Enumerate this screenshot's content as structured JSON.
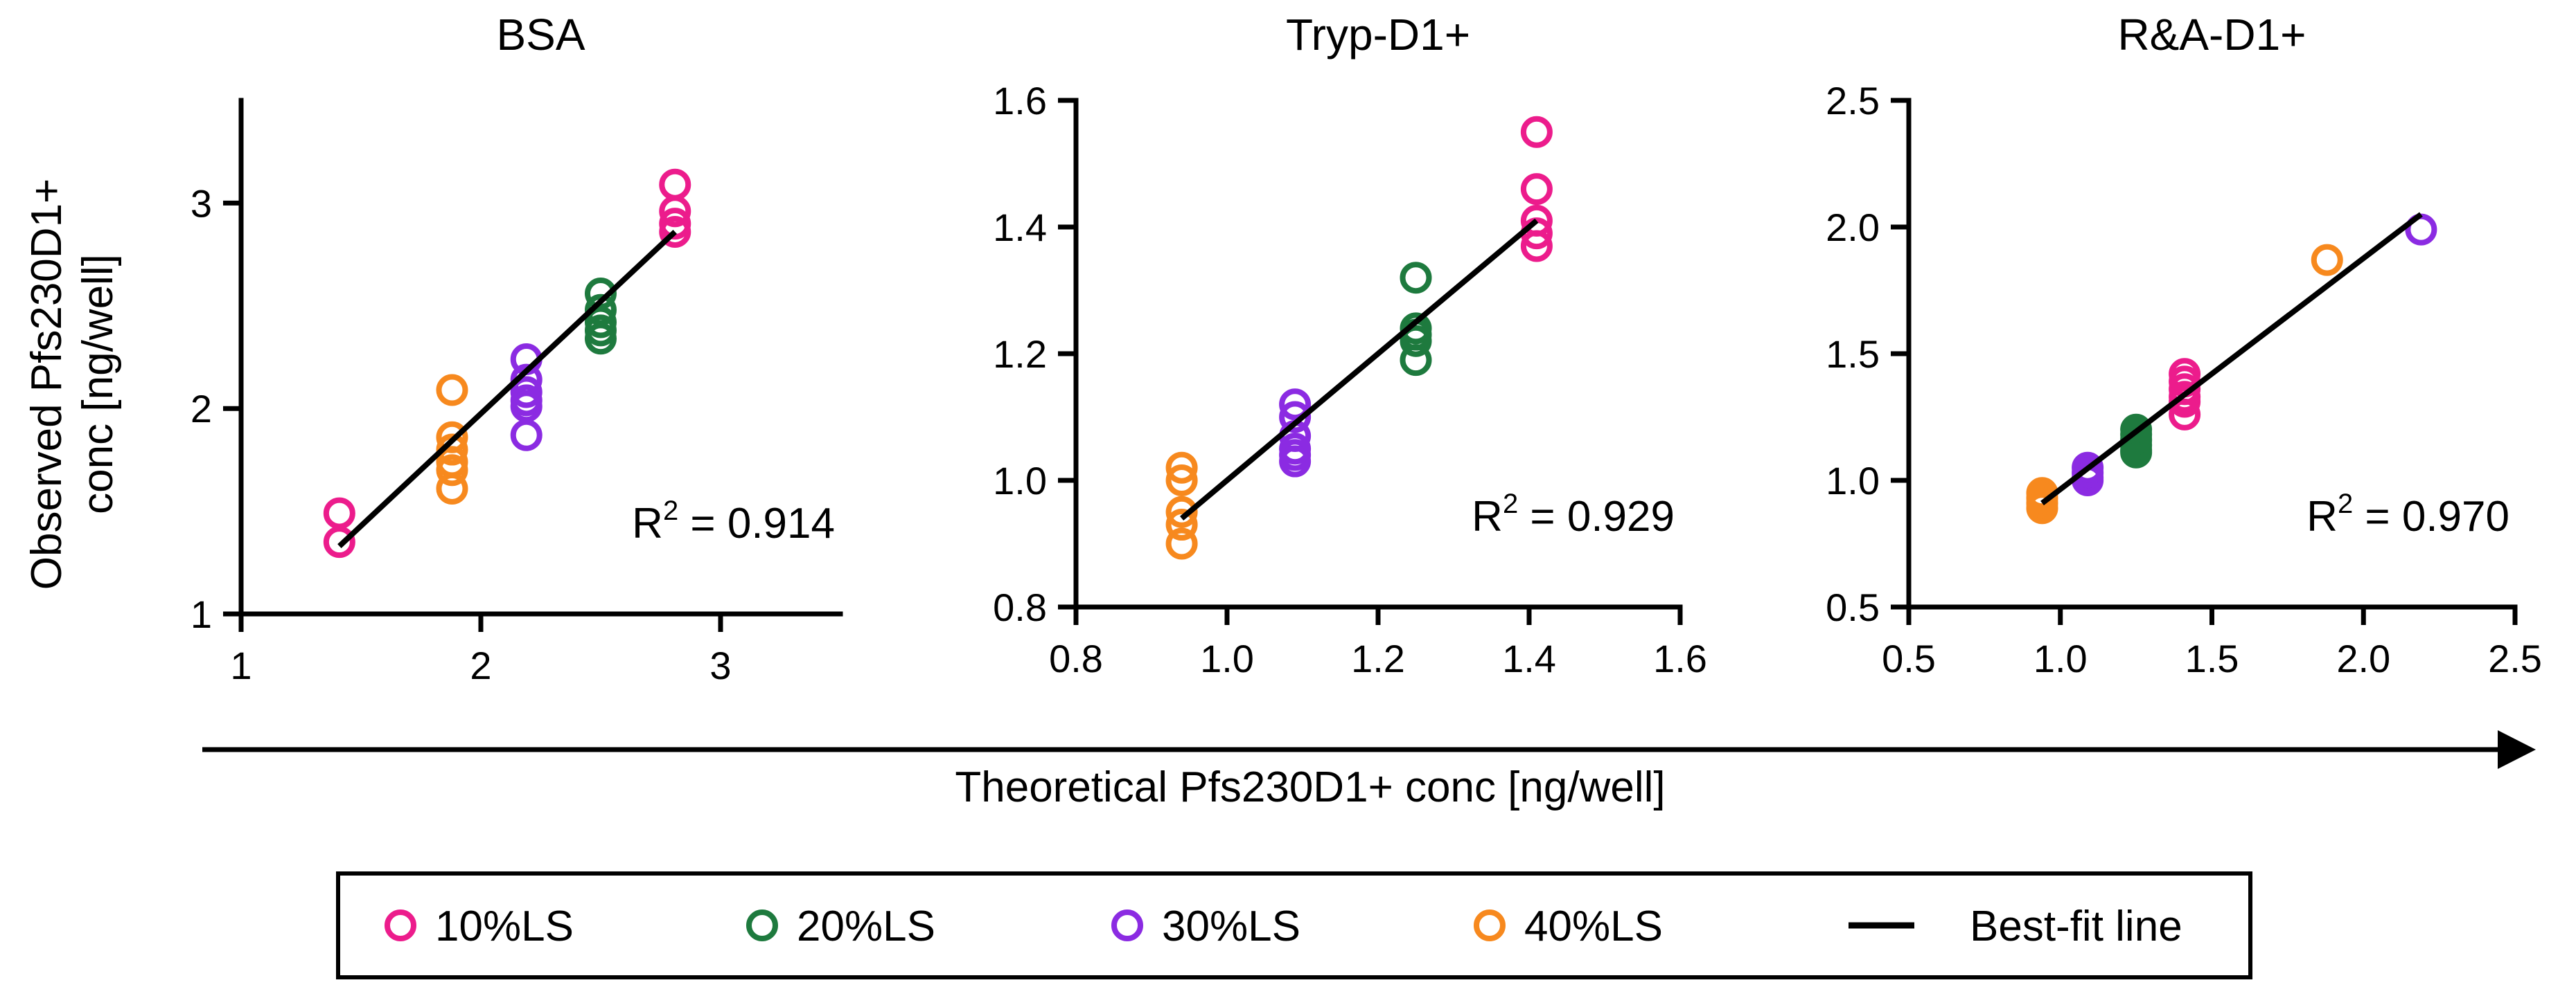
{
  "colors": {
    "10%LS": "#ec1c8c",
    "20%LS": "#1e7a3e",
    "30%LS": "#8b2be2",
    "40%LS": "#f7891e",
    "fit": "#000000"
  },
  "y_axis_title": [
    "Observed Pfs230D1+",
    "conc [ng/well]"
  ],
  "x_axis_title": "Theoretical Pfs230D1+ conc [ng/well]",
  "legend": {
    "items": [
      {
        "label": "10%LS",
        "kind": "marker",
        "color_key": "10%LS"
      },
      {
        "label": "20%LS",
        "kind": "marker",
        "color_key": "20%LS"
      },
      {
        "label": "30%LS",
        "kind": "marker",
        "color_key": "30%LS"
      },
      {
        "label": "40%LS",
        "kind": "marker",
        "color_key": "40%LS"
      },
      {
        "label": "Best-fit line",
        "kind": "line",
        "color_key": "fit"
      }
    ]
  },
  "chart_data": [
    {
      "type": "scatter",
      "title": "BSA",
      "xlim": [
        1,
        3.5
      ],
      "ylim": [
        1,
        3.5
      ],
      "xticks": [
        1,
        2,
        3
      ],
      "yticks": [
        1,
        2,
        3
      ],
      "xtick_labels": [
        "1",
        "2",
        "3"
      ],
      "ytick_labels": [
        "1",
        "2",
        "3"
      ],
      "r2_prefix": "R",
      "r2_sup": "2",
      "r2_value": " = 0.914",
      "fit": {
        "x": [
          1.41,
          2.81
        ],
        "y": [
          1.33,
          2.86
        ]
      },
      "series": [
        {
          "name": "10%LS",
          "x": [
            1.41,
            1.41,
            2.81,
            2.81,
            2.81,
            2.81
          ],
          "y": [
            1.49,
            1.35,
            3.09,
            2.96,
            2.9,
            2.86
          ]
        },
        {
          "name": "20%LS",
          "x": [
            2.5,
            2.5,
            2.5,
            2.5,
            2.5
          ],
          "y": [
            2.56,
            2.48,
            2.42,
            2.38,
            2.34
          ]
        },
        {
          "name": "30%LS",
          "x": [
            2.19,
            2.19,
            2.19,
            2.19,
            2.19,
            2.19
          ],
          "y": [
            2.24,
            2.14,
            2.08,
            2.04,
            2.01,
            1.87
          ]
        },
        {
          "name": "40%LS",
          "x": [
            1.88,
            1.88,
            1.88,
            1.88,
            1.88,
            1.88
          ],
          "y": [
            2.09,
            1.86,
            1.8,
            1.74,
            1.7,
            1.61
          ]
        }
      ]
    },
    {
      "type": "scatter",
      "title": "Tryp-D1+",
      "xlim": [
        0.8,
        1.6
      ],
      "ylim": [
        0.8,
        1.6
      ],
      "xticks": [
        0.8,
        1.0,
        1.2,
        1.4,
        1.6
      ],
      "yticks": [
        0.8,
        1.0,
        1.2,
        1.4,
        1.6
      ],
      "xtick_labels": [
        "0.8",
        "1.0",
        "1.2",
        "1.4",
        "1.6"
      ],
      "ytick_labels": [
        "0.8",
        "1.0",
        "1.2",
        "1.4",
        "1.6"
      ],
      "r2_prefix": "R",
      "r2_sup": "2",
      "r2_value": " = 0.929",
      "fit": {
        "x": [
          0.94,
          1.41
        ],
        "y": [
          0.94,
          1.41
        ]
      },
      "series": [
        {
          "name": "10%LS",
          "x": [
            1.41,
            1.41,
            1.41,
            1.41,
            1.41
          ],
          "y": [
            1.55,
            1.46,
            1.41,
            1.39,
            1.37
          ]
        },
        {
          "name": "20%LS",
          "x": [
            1.25,
            1.25,
            1.25,
            1.25,
            1.25
          ],
          "y": [
            1.32,
            1.24,
            1.23,
            1.22,
            1.19
          ]
        },
        {
          "name": "30%LS",
          "x": [
            1.09,
            1.09,
            1.09,
            1.09,
            1.09,
            1.09
          ],
          "y": [
            1.12,
            1.1,
            1.07,
            1.05,
            1.04,
            1.03
          ]
        },
        {
          "name": "40%LS",
          "x": [
            0.94,
            0.94,
            0.94,
            0.94,
            0.94
          ],
          "y": [
            1.02,
            1.0,
            0.95,
            0.93,
            0.9
          ]
        }
      ]
    },
    {
      "type": "scatter",
      "title": "R&A-D1+",
      "xlim": [
        0.5,
        2.5
      ],
      "ylim": [
        0.5,
        2.5
      ],
      "xticks": [
        0.5,
        1.0,
        1.5,
        2.0,
        2.5
      ],
      "yticks": [
        0.5,
        1.0,
        1.5,
        2.0,
        2.5
      ],
      "xtick_labels": [
        "0.5",
        "1.0",
        "1.5",
        "2.0",
        "2.5"
      ],
      "ytick_labels": [
        "0.5",
        "1.0",
        "1.5",
        "2.0",
        "2.5"
      ],
      "r2_prefix": "R",
      "r2_sup": "2",
      "r2_value": " = 0.970",
      "fit": {
        "x": [
          0.94,
          2.19
        ],
        "y": [
          0.91,
          2.05
        ]
      },
      "series": [
        {
          "name": "10%LS",
          "x": [
            1.41,
            1.41,
            1.41,
            1.41,
            1.41,
            1.41
          ],
          "y": [
            1.42,
            1.39,
            1.36,
            1.33,
            1.31,
            1.26
          ]
        },
        {
          "name": "20%LS",
          "x": [
            1.25,
            1.25,
            1.25,
            1.25,
            1.25,
            1.25
          ],
          "y": [
            1.2,
            1.18,
            1.16,
            1.14,
            1.12,
            1.11
          ]
        },
        {
          "name": "30%LS",
          "x": [
            1.09,
            1.09,
            1.09,
            1.09,
            2.19
          ],
          "y": [
            1.05,
            1.03,
            1.01,
            1.0,
            1.99
          ]
        },
        {
          "name": "40%LS",
          "x": [
            0.94,
            0.94,
            0.94,
            0.94,
            1.88
          ],
          "y": [
            0.95,
            0.93,
            0.91,
            0.89,
            1.87
          ]
        }
      ]
    }
  ]
}
